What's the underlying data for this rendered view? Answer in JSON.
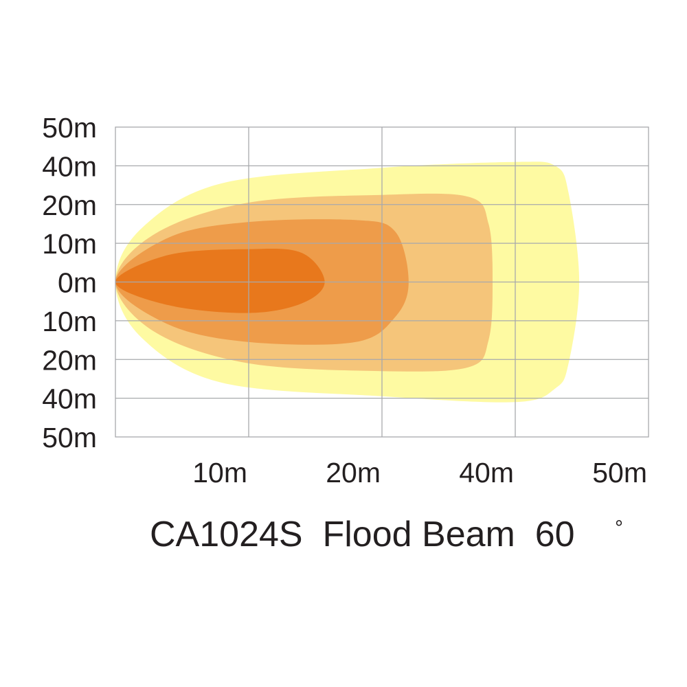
{
  "chart_data": {
    "type": "area",
    "title": "CA1024S  Flood Beam  60",
    "degree_symbol": "°",
    "y_ticks": [
      "50m",
      "40m",
      "20m",
      "10m",
      "0m",
      "10m",
      "20m",
      "40m",
      "50m"
    ],
    "x_ticks": [
      "10m",
      "20m",
      "40m",
      "50m"
    ],
    "grid": true,
    "x_rank_range": [
      0,
      4
    ],
    "y_rank_range": [
      -4,
      4
    ],
    "zones": [
      {
        "color": "#fefaa2",
        "outline": [
          [
            0,
            0
          ],
          [
            0.2,
            1.4
          ],
          [
            0.8,
            2.55
          ],
          [
            2.0,
            2.95
          ],
          [
            3.0,
            3.1
          ],
          [
            3.3,
            3.0
          ],
          [
            3.4,
            2.3
          ],
          [
            3.48,
            0
          ],
          [
            3.4,
            -2.1
          ],
          [
            3.3,
            -2.75
          ],
          [
            3.0,
            -3.1
          ],
          [
            2.0,
            -2.95
          ],
          [
            0.8,
            -2.6
          ],
          [
            0.2,
            -1.45
          ]
        ]
      },
      {
        "color": "#f5c57a",
        "outline": [
          [
            0,
            0
          ],
          [
            0.3,
            1.25
          ],
          [
            1.0,
            2.05
          ],
          [
            2.0,
            2.25
          ],
          [
            2.65,
            2.2
          ],
          [
            2.8,
            1.5
          ],
          [
            2.83,
            0
          ],
          [
            2.8,
            -1.5
          ],
          [
            2.65,
            -2.2
          ],
          [
            2.0,
            -2.3
          ],
          [
            1.0,
            -2.1
          ],
          [
            0.3,
            -1.3
          ]
        ]
      },
      {
        "color": "#ee9c4a",
        "outline": [
          [
            0,
            0
          ],
          [
            0.4,
            1.15
          ],
          [
            1.0,
            1.55
          ],
          [
            1.8,
            1.6
          ],
          [
            2.1,
            1.3
          ],
          [
            2.2,
            0
          ],
          [
            2.1,
            -0.9
          ],
          [
            1.8,
            -1.55
          ],
          [
            1.0,
            -1.55
          ],
          [
            0.4,
            -1.1
          ]
        ]
      },
      {
        "color": "#e8781c",
        "outline": [
          [
            0,
            0
          ],
          [
            0.4,
            0.7
          ],
          [
            1.0,
            0.85
          ],
          [
            1.4,
            0.75
          ],
          [
            1.57,
            0
          ],
          [
            1.4,
            -0.55
          ],
          [
            1.0,
            -0.8
          ],
          [
            0.4,
            -0.6
          ]
        ]
      }
    ]
  }
}
